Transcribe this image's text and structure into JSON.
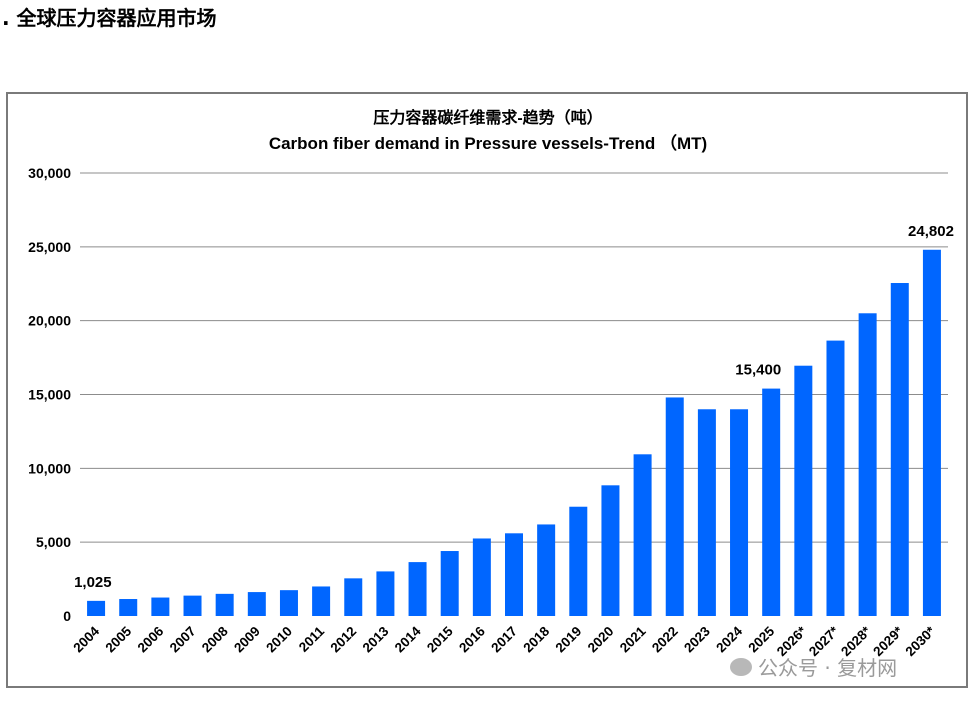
{
  "page": {
    "heading": ". 全球压力容器应用市场"
  },
  "chart_data": {
    "type": "bar",
    "title": "压力容器碳纤维需求-趋势（吨）",
    "subtitle": "Carbon fiber demand in Pressure vessels-Trend （MT)",
    "xlabel": "",
    "ylabel": "",
    "ylim": [
      0,
      30000
    ],
    "yticks": [
      0,
      5000,
      10000,
      15000,
      20000,
      25000,
      30000
    ],
    "ytick_labels": [
      "0",
      "5,000",
      "10,000",
      "15,000",
      "20,000",
      "25,000",
      "30,000"
    ],
    "categories": [
      "2004",
      "2005",
      "2006",
      "2007",
      "2008",
      "2009",
      "2010",
      "2011",
      "2012",
      "2013",
      "2014",
      "2015",
      "2016",
      "2017",
      "2018",
      "2019",
      "2020",
      "2021",
      "2022",
      "2023",
      "2024",
      "2025",
      "2026*",
      "2027*",
      "2028*",
      "2029*",
      "2030*"
    ],
    "values": [
      1025,
      1150,
      1250,
      1380,
      1500,
      1620,
      1750,
      2000,
      2550,
      3020,
      3650,
      4400,
      5250,
      5600,
      6200,
      7400,
      8850,
      10950,
      14800,
      14000,
      14000,
      15400,
      16950,
      18650,
      20500,
      22550,
      24802
    ],
    "bar_color": "#0066ff",
    "grid": true,
    "data_labels": [
      {
        "index": 0,
        "text": "1,025"
      },
      {
        "index": 21,
        "text": "15,400"
      },
      {
        "index": 26,
        "text": "24,802"
      }
    ]
  },
  "watermark": {
    "text": "公众号 · 复材网"
  }
}
